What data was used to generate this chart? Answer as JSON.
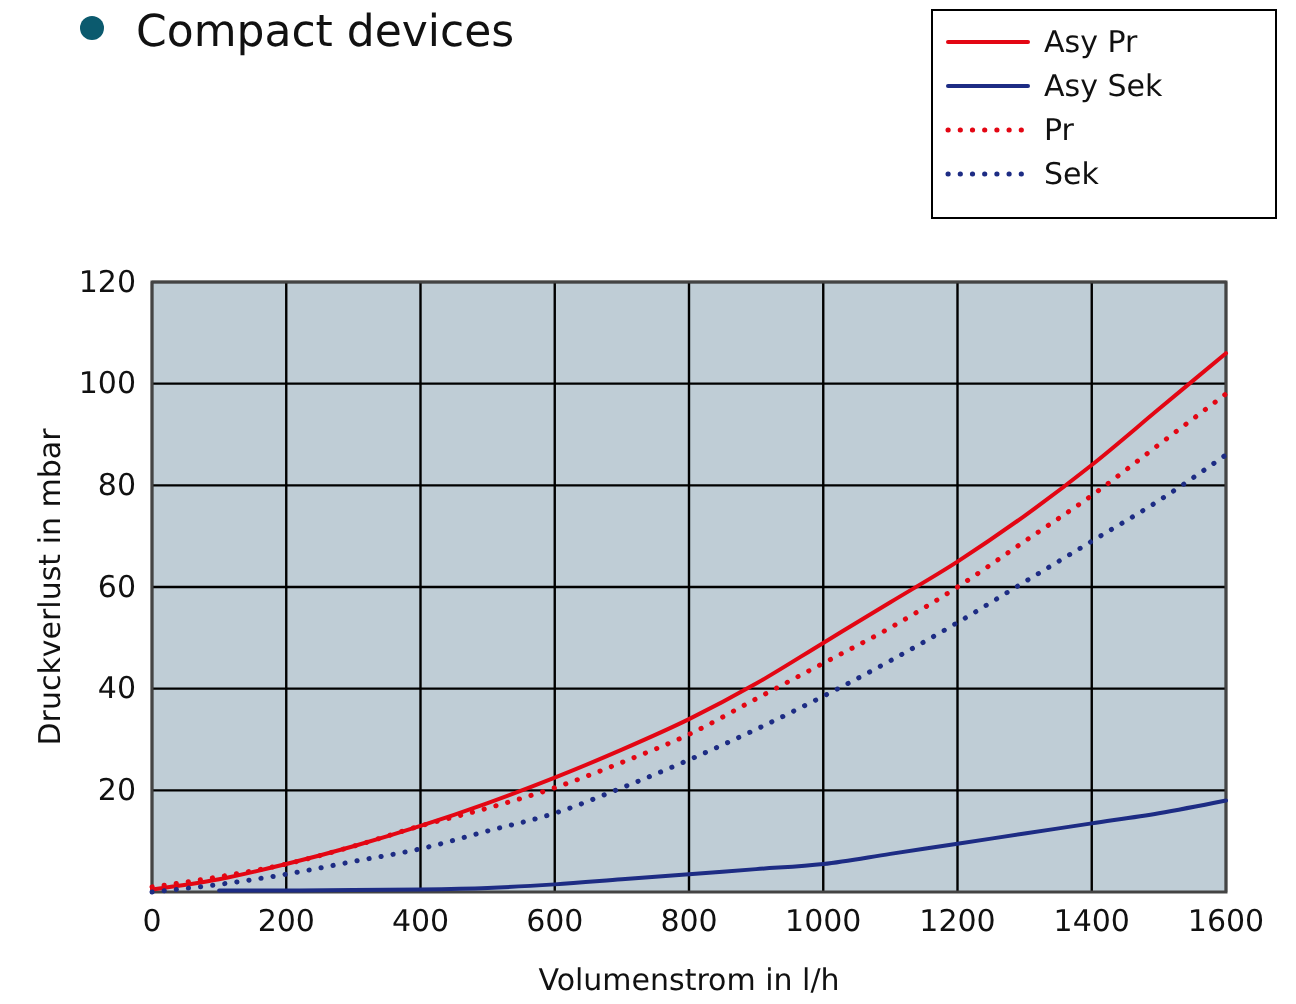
{
  "chart_data": {
    "type": "line",
    "title": "Compact devices",
    "xlabel": "Volumenstrom  in l/h",
    "ylabel": "Druckverlust in mbar",
    "x": [
      0,
      100,
      200,
      300,
      400,
      500,
      600,
      700,
      800,
      900,
      1000,
      1100,
      1200,
      1300,
      1400,
      1500,
      1600
    ],
    "series": [
      {
        "name": "Asy Pr",
        "color": "#e30613",
        "line_style": "solid",
        "values": [
          0.5,
          2.5,
          5.5,
          9,
          13,
          17.5,
          22.5,
          28,
          34,
          41,
          49,
          57,
          65,
          74,
          84,
          95,
          106
        ]
      },
      {
        "name": "Asy Sek",
        "color": "#1d2c84",
        "line_style": "solid",
        "values": [
          null,
          0.3,
          0.3,
          0.4,
          0.5,
          0.8,
          1.5,
          2.5,
          3.5,
          4.5,
          5.5,
          7.5,
          9.5,
          11.5,
          13.5,
          15.5,
          18
        ]
      },
      {
        "name": "Pr",
        "color": "#e30613",
        "line_style": "dotted",
        "values": [
          1,
          3,
          5.5,
          9,
          13,
          16.5,
          20.5,
          25.5,
          31,
          38,
          45,
          52,
          60,
          69,
          78,
          88,
          98
        ]
      },
      {
        "name": "Sek",
        "color": "#1d2c84",
        "line_style": "dotted",
        "values": [
          0,
          1.5,
          3.5,
          6,
          8.5,
          12,
          15.5,
          20.5,
          26,
          32,
          38.5,
          45.5,
          53,
          61,
          69,
          77,
          86
        ]
      }
    ],
    "xlim": [
      0,
      1600
    ],
    "xticks": [
      0,
      200,
      400,
      600,
      800,
      1000,
      1200,
      1400,
      1600
    ],
    "ylim": [
      0,
      120
    ],
    "yticks": [
      20,
      40,
      60,
      80,
      100,
      120
    ],
    "grid": true,
    "legend": "top right",
    "marker": "none"
  }
}
